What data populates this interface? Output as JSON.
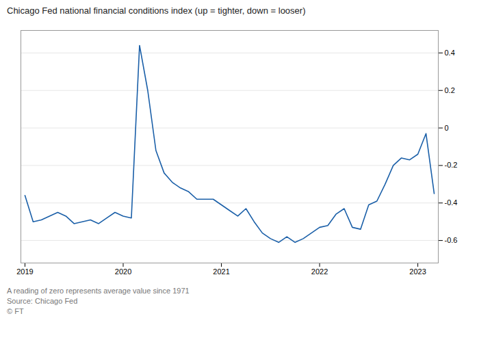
{
  "chart_data": {
    "type": "line",
    "title": "Chicago Fed national financial conditions index (up = tighter, down = looser)",
    "annotations": [
      "A reading of zero represents average value since 1971",
      "Source: Chicago Fed",
      "© FT"
    ],
    "categories": [
      "2019",
      null,
      null,
      null,
      null,
      null,
      null,
      null,
      null,
      null,
      null,
      null,
      "2020",
      null,
      null,
      null,
      null,
      null,
      null,
      null,
      null,
      null,
      null,
      null,
      "2021",
      null,
      null,
      null,
      null,
      null,
      null,
      null,
      null,
      null,
      null,
      null,
      "2022",
      null,
      null,
      null,
      null,
      null,
      null,
      null,
      null,
      null,
      null,
      null,
      "2023",
      null,
      null
    ],
    "values": [
      -0.36,
      -0.5,
      -0.49,
      -0.47,
      -0.45,
      -0.47,
      -0.51,
      -0.5,
      -0.49,
      -0.51,
      -0.48,
      -0.45,
      -0.47,
      -0.48,
      0.44,
      0.2,
      -0.12,
      -0.24,
      -0.29,
      -0.32,
      -0.34,
      -0.38,
      -0.38,
      -0.38,
      -0.41,
      -0.44,
      -0.47,
      -0.43,
      -0.5,
      -0.56,
      -0.59,
      -0.61,
      -0.58,
      -0.61,
      -0.59,
      -0.56,
      -0.53,
      -0.52,
      -0.46,
      -0.43,
      -0.53,
      -0.54,
      -0.41,
      -0.39,
      -0.3,
      -0.2,
      -0.16,
      -0.17,
      -0.14,
      -0.03,
      -0.35
    ],
    "color": "#1a5fa8",
    "ylim": [
      -0.72,
      0.52
    ],
    "yticks": [
      -0.6,
      -0.4,
      -0.2,
      0,
      0.2,
      0.4
    ],
    "grid": true
  }
}
